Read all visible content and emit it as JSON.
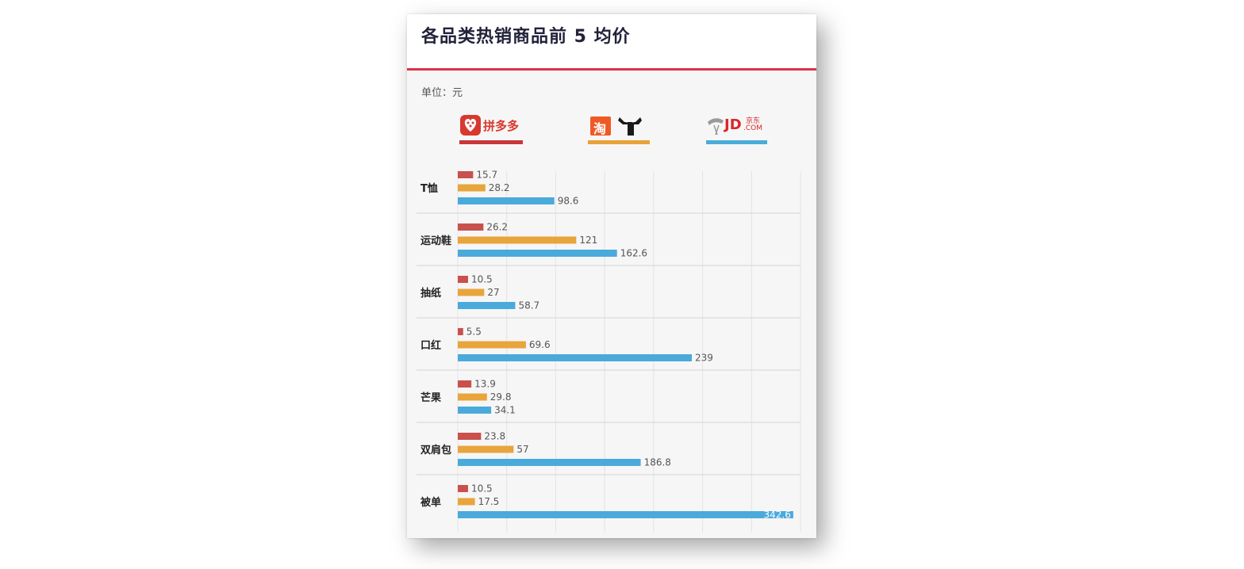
{
  "title": "各品类热销商品前 5 均价",
  "unit": "单位：元",
  "logos": {
    "pdd": {
      "name": "拼多多",
      "color": "#c8373a"
    },
    "tmall": {
      "name": "淘",
      "color": "#e8a23a"
    },
    "jd": {
      "name": "JD",
      "sub": "京东",
      "com": ".COM",
      "color": "#4aacd8"
    }
  },
  "chart_data": {
    "type": "bar",
    "orientation": "horizontal",
    "title": "各品类热销商品前 5 均价",
    "unit": "元",
    "categories": [
      "T恤",
      "运动鞋",
      "抽纸",
      "口红",
      "芒果",
      "双肩包",
      "被单"
    ],
    "series": [
      {
        "name": "拼多多",
        "color": "#c9514d",
        "values": [
          15.7,
          26.2,
          10.5,
          5.5,
          13.9,
          23.8,
          10.5
        ]
      },
      {
        "name": "",
        "color": "#e8a53c",
        "values": [
          28.2,
          121,
          27,
          69.6,
          29.8,
          57,
          17.5
        ]
      },
      {
        "name": "JD.COM",
        "color": "#4aaadb",
        "values": [
          98.6,
          162.6,
          58.7,
          239,
          34.1,
          186.8,
          342.6
        ]
      }
    ],
    "xlim": [
      0,
      350
    ],
    "xticks": [
      0,
      50,
      100,
      150,
      200,
      250,
      300,
      350
    ],
    "grid": true
  }
}
